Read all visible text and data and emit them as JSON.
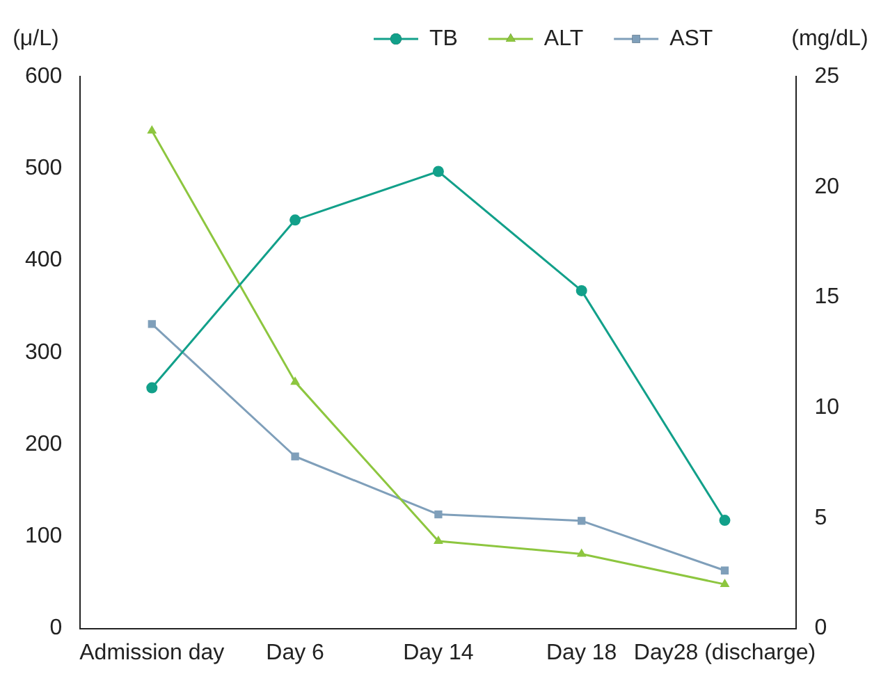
{
  "chart_data": {
    "type": "line",
    "ylabel": "(μ/L)",
    "y2label": "(mg/dL)",
    "categories": [
      "Admission day",
      "Day 6",
      "Day 14",
      "Day 18",
      "Day28 (discharge)"
    ],
    "series": [
      {
        "name": "TB",
        "color": "#12a08a",
        "axis": "y2",
        "marker": "circle",
        "values": [
          10.9,
          18.5,
          20.7,
          15.3,
          4.9
        ]
      },
      {
        "name": "ALT",
        "color": "#8dc63f",
        "marker": "triangle",
        "values": [
          541,
          268,
          95,
          81,
          48
        ]
      },
      {
        "name": "AST",
        "color": "#7f9fba",
        "marker": "square",
        "values": [
          331,
          187,
          124,
          117,
          63
        ]
      }
    ],
    "ylim": [
      0,
      600
    ],
    "yticks": [
      0,
      100,
      200,
      300,
      400,
      500,
      600
    ],
    "y2lim": [
      0,
      25
    ],
    "y2ticks": [
      0,
      5,
      10,
      15,
      20,
      25
    ],
    "grid": false,
    "legend": "top right",
    "line_style": "solid"
  }
}
